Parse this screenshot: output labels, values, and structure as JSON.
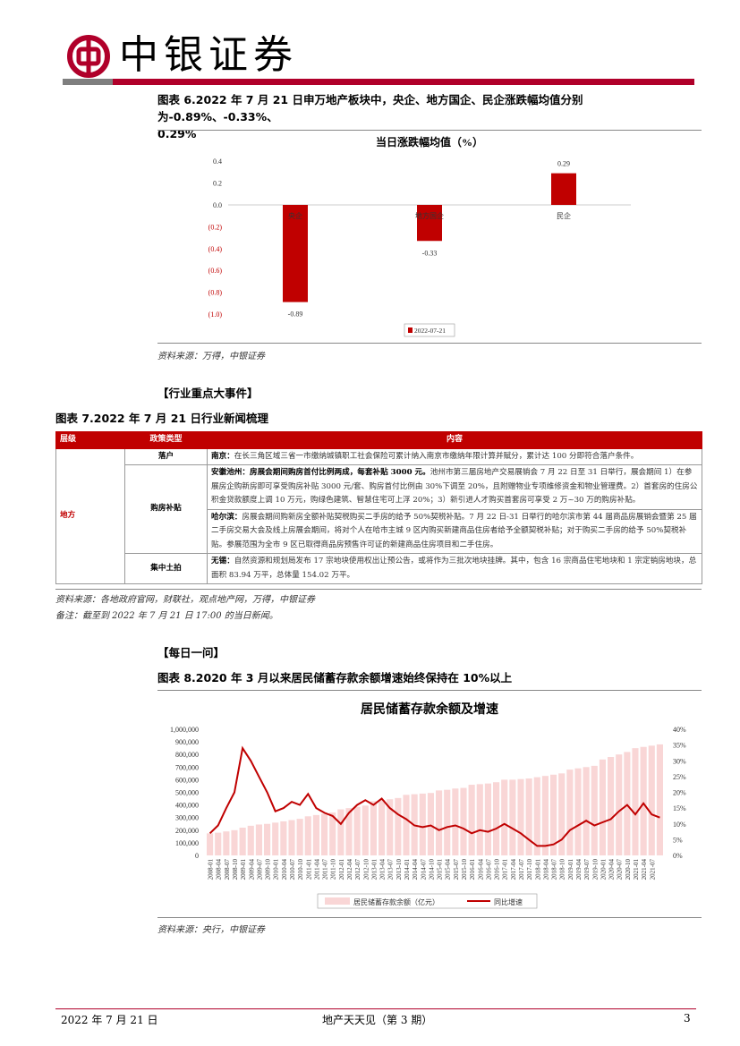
{
  "header": {
    "brand": "中银证券",
    "colors": {
      "brand_red": "#b0002a",
      "bar_gray": "#7f7f7f"
    }
  },
  "figure6": {
    "caption_line1": "图表 6.2022 年 7 月 21 日申万地产板块中，央企、地方国企、民企涨跌幅均值分别为-0.89%、-0.33%、",
    "caption_line2": "0.29%",
    "source": "资料来源：万得，中银证券"
  },
  "section_events": "【行业重点大事件】",
  "figure7": {
    "caption": "图表 7.2022 年 7 月 21 日行业新闻梳理",
    "headers": [
      "层级",
      "政策类型",
      "内容"
    ],
    "level": "地方",
    "rows": [
      {
        "type": "落户",
        "city": "南京：",
        "text": "在长三角区域三省一市缴纳城镇职工社会保险可累计纳入南京市缴纳年限计算并赋分，累计达 100 分即符合落户条件。"
      },
      {
        "type": "购房补贴",
        "city": "安徽池州：房展会期间购房首付比例两成，每套补贴 3000 元。",
        "text": "池州市第三届房地产交易展销会 7 月 22 日至 31 日举行，展会期间 1）在参展房企购新房即可享受购房补贴 3000 元/套、购房首付比例由 30%下调至 20%，且附赠物业专项维修资金和物业管理费。2）首套房的住房公积金贷款额度上调 10 万元，购绿色建筑、智慧住宅可上浮 20%；3）新引进人才购买首套房可享受 2 万~30 万的购房补贴。"
      },
      {
        "type": "",
        "city": "哈尔滨：",
        "text": "房展会期间购新房全额补贴契税购买二手房的给予 50%契税补贴。7 月 22 日-31 日举行的哈尔滨市第 44 届商品房展销会暨第 25 届二手房交易大会及线上房展会期间，将对个人在哈市主城 9 区内购买新建商品住房者给予全额契税补贴；对于购买二手房的给予 50%契税补贴。参展范围为全市 9 区已取得商品房预售许可证的新建商品住房项目和二手住房。"
      },
      {
        "type": "集中土拍",
        "city": "无锡：",
        "text": "自然资源和规划局发布 17 宗地块使用权出让预公告，或将作为三批次地块挂牌。其中，包含 16 宗商品住宅地块和 1 宗定销房地块，总面积 83.94 万平，总体量 154.02 万平。"
      }
    ],
    "source": "资料来源：各地政府官网，财联社，观点地产网，万得，中银证券",
    "note": "备注：截至到 2022 年 7 月 21 日 17:00 的当日新闻。"
  },
  "section_qa": "【每日一问】",
  "figure8": {
    "caption": "图表 8.2020 年 3 月以来居民储蓄存款余额增速始终保持在 10%以上",
    "source": "资料来源：央行，中银证券"
  },
  "footer": {
    "date": "2022 年 7 月 21 日",
    "title": "地产天天见（第 3 期）",
    "page": "3"
  },
  "chart_data": [
    {
      "type": "bar",
      "title": "当日涨跌幅均值（%）",
      "categories": [
        "央企",
        "地方国企",
        "民企"
      ],
      "series": [
        {
          "name": "2022-07-21",
          "values": [
            -0.89,
            -0.33,
            0.29
          ],
          "color": "#c00000"
        }
      ],
      "data_labels": [
        "-0.89",
        "-0.33",
        "0.29"
      ],
      "ylim": [
        -1.0,
        0.4
      ],
      "yticks": [
        "0.4",
        "0.2",
        "0.0",
        "(0.2)",
        "(0.4)",
        "(0.6)",
        "(0.8)",
        "(1.0)"
      ],
      "negative_tick_color": "#c00000",
      "legend": "bottom",
      "grid": false
    },
    {
      "type": "bar+line",
      "title": "居民储蓄存款余额及增速",
      "x_ticks": [
        "2008-01",
        "2008-04",
        "2008-07",
        "2008-10",
        "2009-01",
        "2009-04",
        "2009-07",
        "2009-10",
        "2010-01",
        "2010-04",
        "2010-07",
        "2010-10",
        "2011-01",
        "2011-04",
        "2011-07",
        "2011-10",
        "2012-01",
        "2012-04",
        "2012-07",
        "2012-10",
        "2013-01",
        "2013-04",
        "2013-07",
        "2013-10",
        "2014-01",
        "2014-04",
        "2014-07",
        "2014-10",
        "2015-01",
        "2015-04",
        "2015-07",
        "2015-10",
        "2016-01",
        "2016-04",
        "2016-07",
        "2016-10",
        "2017-01",
        "2017-04",
        "2017-07",
        "2017-10",
        "2018-01",
        "2018-04",
        "2018-07",
        "2018-10",
        "2019-01",
        "2019-04",
        "2019-07",
        "2019-10",
        "2020-01",
        "2020-04",
        "2020-07",
        "2020-10",
        "2021-01",
        "2021-04",
        "2021-07"
      ],
      "x_last": "2021-10",
      "left_yticks": [
        "1,000,000",
        "900,000",
        "800,000",
        "700,000",
        "600,000",
        "500,000",
        "400,000",
        "300,000",
        "200,000",
        "100,000",
        "0"
      ],
      "right_yticks": [
        "40%",
        "35%",
        "30%",
        "25%",
        "20%",
        "15%",
        "10%",
        "5%",
        "0%"
      ],
      "ylim_left": [
        0,
        1000000
      ],
      "ylim_right": [
        0,
        40
      ],
      "series": [
        {
          "name": "居民储蓄存款余额（亿元）",
          "axis": "left",
          "kind": "bar",
          "color": "#f9d6d6",
          "values": [
            175000,
            180000,
            190000,
            200000,
            220000,
            235000,
            245000,
            250000,
            260000,
            270000,
            280000,
            290000,
            310000,
            320000,
            330000,
            340000,
            365000,
            375000,
            385000,
            395000,
            430000,
            440000,
            445000,
            455000,
            480000,
            485000,
            490000,
            495000,
            515000,
            520000,
            530000,
            535000,
            560000,
            565000,
            570000,
            580000,
            600000,
            600000,
            605000,
            610000,
            620000,
            630000,
            640000,
            650000,
            680000,
            690000,
            700000,
            710000,
            760000,
            780000,
            800000,
            820000,
            850000,
            860000,
            870000,
            880000
          ]
        },
        {
          "name": "同比增速",
          "axis": "right",
          "kind": "line",
          "color": "#c00000",
          "values": [
            7,
            9.5,
            15,
            20,
            34,
            30,
            25,
            20,
            14,
            15,
            17,
            16,
            19.5,
            15,
            13.5,
            12.5,
            10,
            13.5,
            16,
            17.5,
            16,
            18,
            15,
            13,
            11.5,
            9.5,
            9,
            9.5,
            8,
            9,
            9.5,
            8.5,
            7,
            8,
            7.5,
            8.5,
            10,
            8.5,
            7,
            5,
            3,
            3,
            3.5,
            5,
            8,
            9.5,
            11,
            9.5,
            10.5,
            11.5,
            14,
            16,
            13,
            16.5,
            13,
            12
          ]
        }
      ],
      "legend": "bottom",
      "grid": false
    }
  ]
}
